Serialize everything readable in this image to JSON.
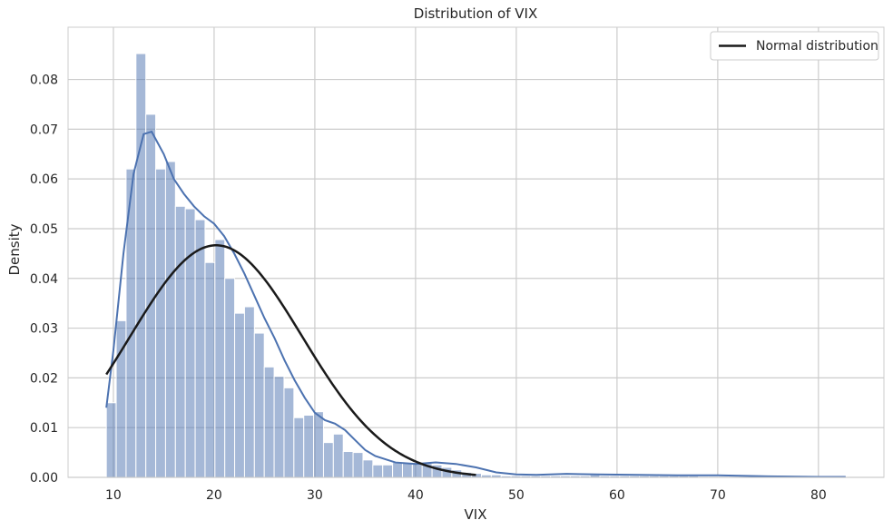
{
  "chart_data": {
    "type": "bar",
    "title": "Distribution of VIX",
    "xlabel": "VIX",
    "ylabel": "Density",
    "xlim": [
      5.5,
      86.5
    ],
    "ylim": [
      0,
      0.0905
    ],
    "x_ticks": [
      10,
      20,
      30,
      40,
      50,
      60,
      70,
      80
    ],
    "y_ticks": [
      0.0,
      0.01,
      0.02,
      0.03,
      0.04,
      0.05,
      0.06,
      0.07,
      0.08
    ],
    "grid": true,
    "legend_position": "top-right",
    "histogram": {
      "bin_start": 9.3,
      "bin_width": 0.98,
      "values": [
        0.015,
        0.0315,
        0.062,
        0.0852,
        0.073,
        0.062,
        0.0635,
        0.0545,
        0.054,
        0.0518,
        0.0432,
        0.0478,
        0.04,
        0.033,
        0.0343,
        0.029,
        0.0222,
        0.0203,
        0.018,
        0.012,
        0.0125,
        0.0132,
        0.007,
        0.0087,
        0.0052,
        0.005,
        0.0035,
        0.0025,
        0.0025,
        0.003,
        0.003,
        0.003,
        0.0028,
        0.0025,
        0.002,
        0.0015,
        0.001,
        0.0008,
        0.0005,
        0.0005,
        0.0003,
        0.0003,
        0.0003,
        0.0003,
        0.0003,
        0.0003,
        0.0003,
        0.0003,
        0.0003,
        0.0005,
        0.0003,
        0.0003,
        0.0003,
        0.0003,
        0.0003,
        0.0003,
        0.0003,
        0.0003,
        0.0003,
        0.0003,
        0.0002,
        0.0002,
        0.0002,
        0.0002,
        0.0002,
        0.0002,
        0.0002,
        0.0002,
        0.0002,
        0.0002,
        0.0002,
        0.0002,
        0.0002,
        0.0002,
        0.0002
      ],
      "color": "#4c72b0"
    },
    "series": [
      {
        "kind": "kde",
        "color": "#4c72b0",
        "x": [
          9.3,
          10,
          11,
          12,
          13,
          13.8,
          15,
          16,
          17,
          18,
          19,
          20,
          21,
          22,
          23,
          24,
          25,
          26,
          27,
          28,
          29,
          30,
          31,
          32,
          33,
          34,
          35,
          36,
          38,
          40,
          42,
          44,
          46,
          48,
          50,
          52,
          55,
          58,
          62,
          66,
          70,
          75,
          80,
          82.7
        ],
        "y": [
          0.014,
          0.0255,
          0.045,
          0.061,
          0.069,
          0.0695,
          0.065,
          0.06,
          0.057,
          0.0545,
          0.0525,
          0.051,
          0.0485,
          0.045,
          0.041,
          0.0365,
          0.032,
          0.028,
          0.0235,
          0.0195,
          0.016,
          0.013,
          0.0115,
          0.0108,
          0.0095,
          0.0075,
          0.0055,
          0.0043,
          0.003,
          0.0027,
          0.003,
          0.0027,
          0.002,
          0.001,
          0.0006,
          0.0005,
          0.0007,
          0.0006,
          0.0005,
          0.0004,
          0.0004,
          0.0002,
          0.0001,
          0.0001
        ]
      },
      {
        "name": "Normal distribution",
        "kind": "normal",
        "color": "#1a1a1a",
        "mean": 20.2,
        "std": 8.55,
        "x_range": [
          9.3,
          46
        ]
      }
    ]
  }
}
